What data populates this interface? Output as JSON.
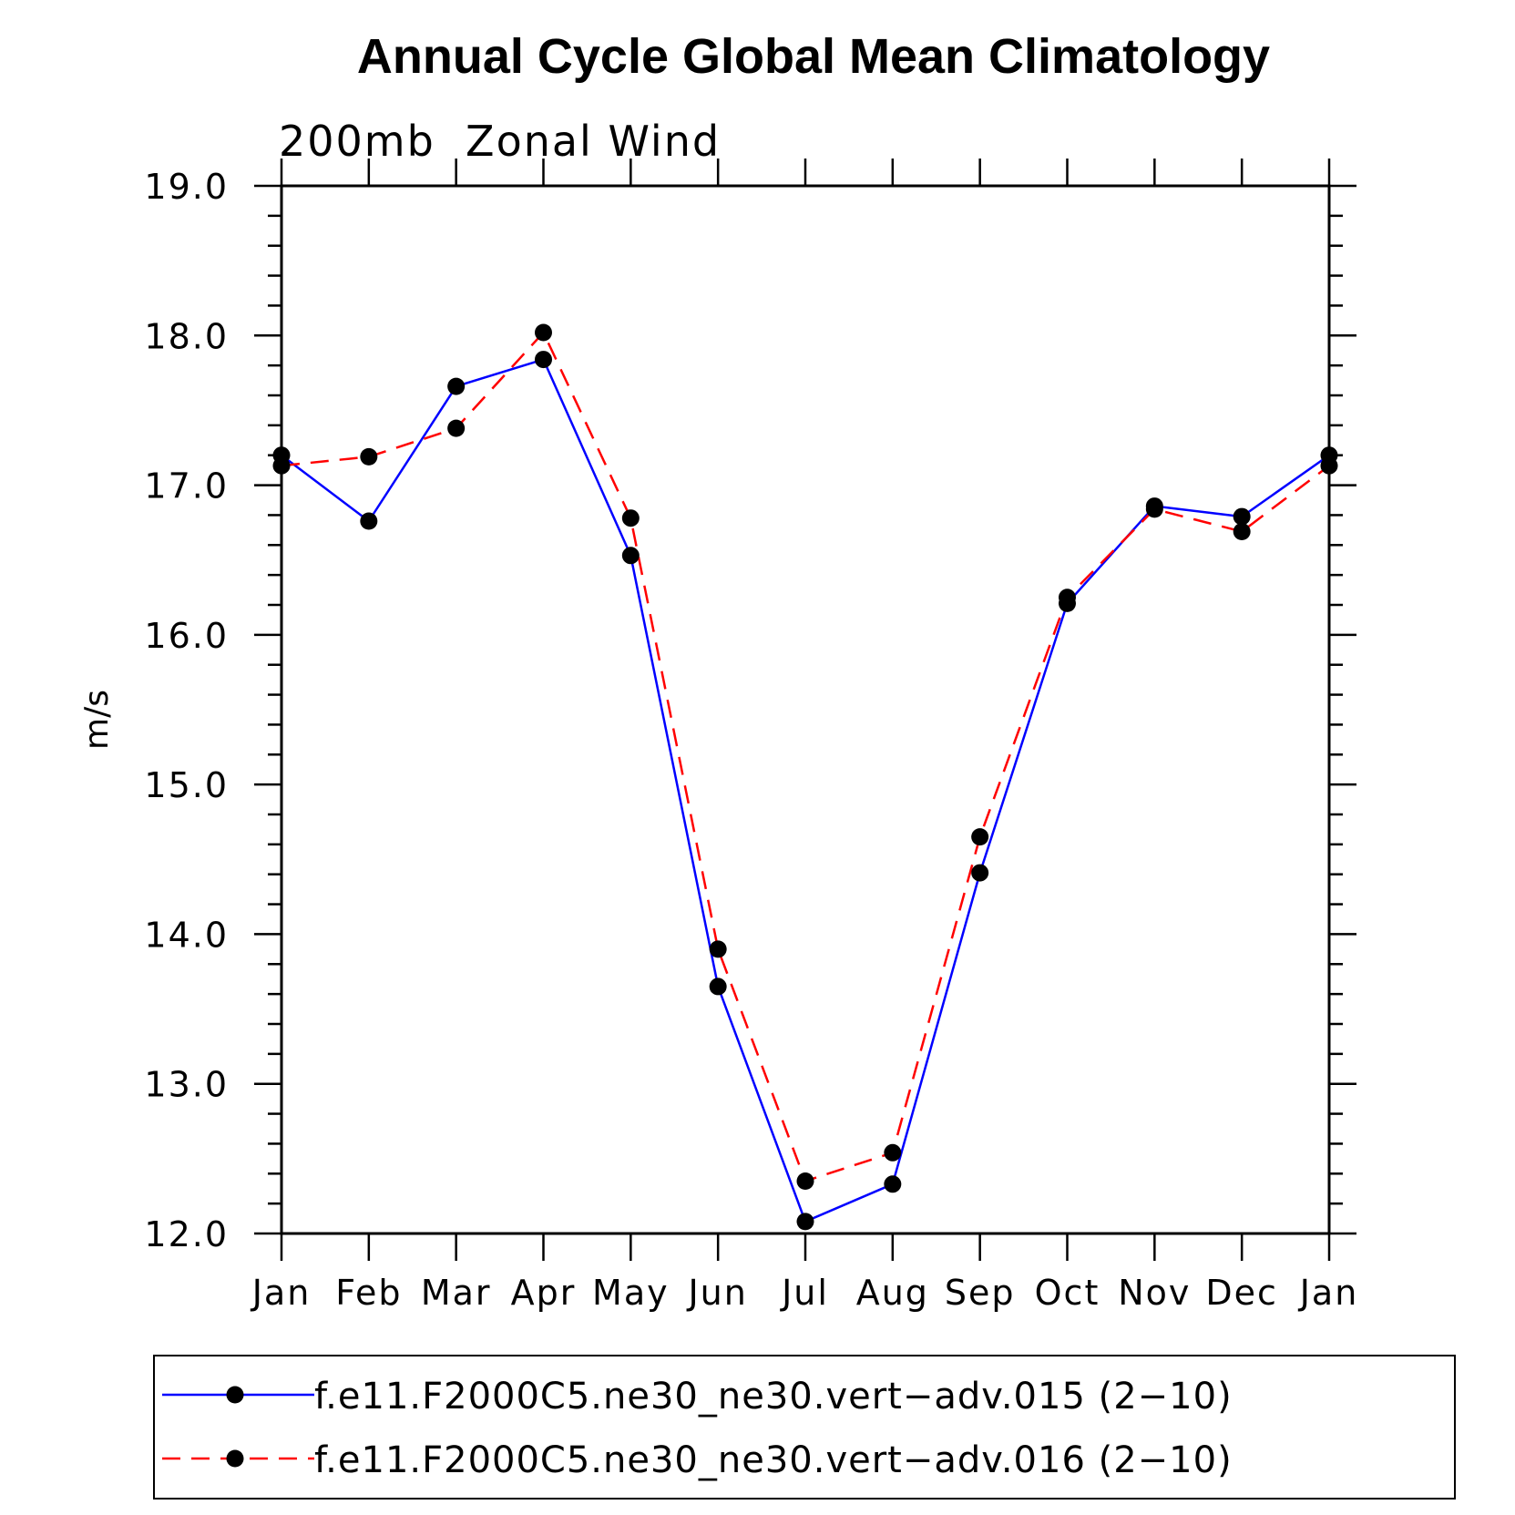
{
  "chart_data": {
    "type": "line",
    "title": "Annual Cycle Global Mean Climatology",
    "subtitle": "200mb  Zonal Wind",
    "xlabel": "",
    "ylabel": "m/s",
    "categories": [
      "Jan",
      "Feb",
      "Mar",
      "Apr",
      "May",
      "Jun",
      "Jul",
      "Aug",
      "Sep",
      "Oct",
      "Nov",
      "Dec",
      "Jan"
    ],
    "ylim": [
      12.0,
      19.0
    ],
    "yticks": [
      "12.0",
      "13.0",
      "14.0",
      "15.0",
      "16.0",
      "17.0",
      "18.0",
      "19.0"
    ],
    "grid": false,
    "legend_position": "bottom",
    "series": [
      {
        "name": "f.e11.F2000C5.ne30_ne30.vert−adv.015 (2−10)",
        "color": "#0000ff",
        "dash": "solid",
        "marker": "filled-circle",
        "values": [
          17.2,
          16.76,
          17.66,
          17.84,
          16.53,
          13.65,
          12.08,
          12.33,
          14.41,
          16.21,
          16.86,
          16.79,
          17.2
        ]
      },
      {
        "name": "f.e11.F2000C5.ne30_ne30.vert−adv.016 (2−10)",
        "color": "#ff0000",
        "dash": "dashed",
        "marker": "filled-circle",
        "values": [
          17.13,
          17.19,
          17.38,
          18.02,
          16.78,
          13.9,
          12.35,
          12.54,
          14.65,
          16.25,
          16.84,
          16.69,
          17.13
        ]
      }
    ]
  }
}
